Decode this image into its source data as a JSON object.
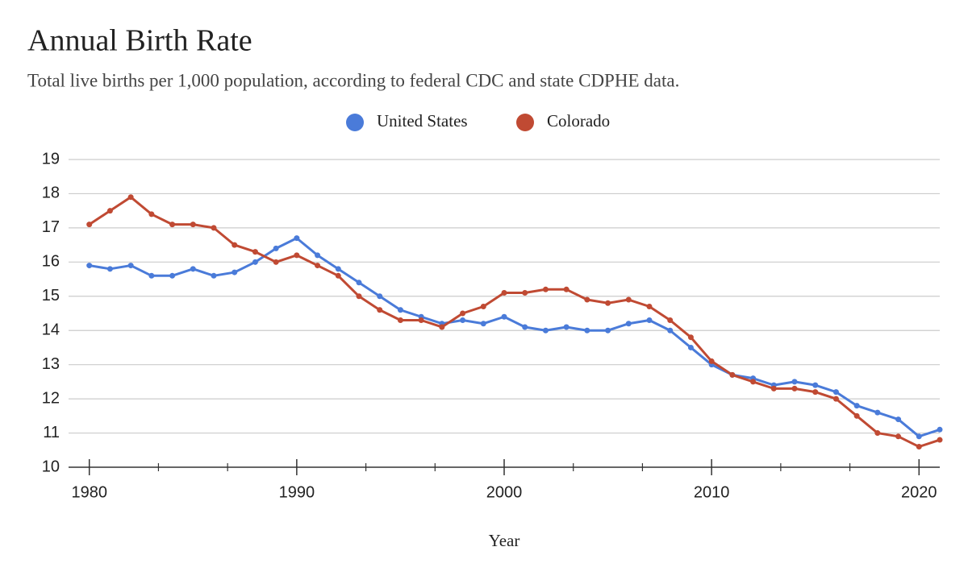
{
  "chart_data": {
    "type": "line",
    "title": "Annual Birth Rate",
    "subtitle": "Total live births per 1,000 population, according to federal CDC and state CDPHE data.",
    "x_label": "Year",
    "x": [
      1980,
      1981,
      1982,
      1983,
      1984,
      1985,
      1986,
      1987,
      1988,
      1989,
      1990,
      1991,
      1992,
      1993,
      1994,
      1995,
      1996,
      1997,
      1998,
      1999,
      2000,
      2001,
      2002,
      2003,
      2004,
      2005,
      2006,
      2007,
      2008,
      2009,
      2010,
      2011,
      2012,
      2013,
      2014,
      2015,
      2016,
      2017,
      2018,
      2019,
      2020,
      2021
    ],
    "series": [
      {
        "name": "United States",
        "color": "#4a7bd9",
        "values": [
          15.9,
          15.8,
          15.9,
          15.6,
          15.6,
          15.8,
          15.6,
          15.7,
          16.0,
          16.4,
          16.7,
          16.2,
          15.8,
          15.4,
          15.0,
          14.6,
          14.4,
          14.2,
          14.3,
          14.2,
          14.4,
          14.1,
          14.0,
          14.1,
          14.0,
          14.0,
          14.2,
          14.3,
          14.0,
          13.5,
          13.0,
          12.7,
          12.6,
          12.4,
          12.5,
          12.4,
          12.2,
          11.8,
          11.6,
          11.4,
          10.9,
          11.1
        ]
      },
      {
        "name": "Colorado",
        "color": "#c04a33",
        "values": [
          17.1,
          17.5,
          17.9,
          17.4,
          17.1,
          17.1,
          17.0,
          16.5,
          16.3,
          16.0,
          16.2,
          15.9,
          15.6,
          15.0,
          14.6,
          14.3,
          14.3,
          14.1,
          14.5,
          14.7,
          15.1,
          15.1,
          15.2,
          15.2,
          14.9,
          14.8,
          14.9,
          14.7,
          14.3,
          13.8,
          13.1,
          12.7,
          12.5,
          12.3,
          12.3,
          12.2,
          12.0,
          11.5,
          11.0,
          10.9,
          10.6,
          10.8
        ]
      }
    ],
    "xlim": [
      1979,
      2021
    ],
    "xticks": [
      1980,
      1990,
      2000,
      2010,
      2020
    ],
    "ylim": [
      10,
      19
    ],
    "yticks": [
      10,
      11,
      12,
      13,
      14,
      15,
      16,
      17,
      18,
      19
    ],
    "grid": true,
    "legend": "top"
  }
}
